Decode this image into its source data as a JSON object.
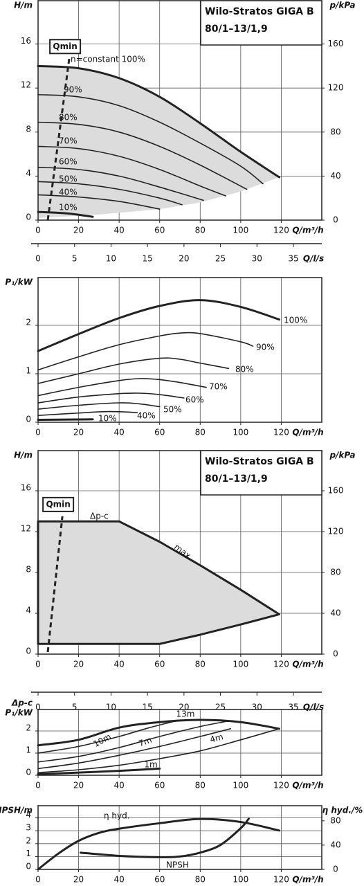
{
  "chart_data": [
    {
      "type": "line",
      "title": "Wilo-Stratos GIGA B",
      "subtitle": "80/1–13/1,9",
      "ylabel": "H/m",
      "y2label": "p/kPa",
      "xlabel": "Q/m³/h",
      "xlim": [
        0,
        140
      ],
      "xticks": [
        0,
        20,
        40,
        60,
        80,
        100,
        120
      ],
      "ylim": [
        0,
        20
      ],
      "yticks": [
        0,
        4,
        8,
        12,
        16
      ],
      "y2lim": [
        0,
        200
      ],
      "y2ticks": [
        0,
        40,
        80,
        120,
        160
      ],
      "x2label": "Q/l/s",
      "x2lim": [
        0,
        38.89
      ],
      "x2ticks": [
        0,
        5,
        10,
        15,
        20,
        25,
        30,
        35
      ],
      "grid": true,
      "area": {
        "color": "#dcdcdc",
        "outline": false,
        "x": [
          0,
          20,
          40,
          60,
          80,
          100,
          119,
          100,
          80,
          60,
          30,
          0
        ],
        "values": [
          14,
          13.8,
          12.9,
          11.2,
          8.8,
          6.2,
          3.9,
          2.6,
          1.6,
          1.0,
          0.5,
          0.2
        ]
      },
      "series": [
        {
          "name": "n=constant 100%",
          "color": "#222222",
          "thick": true,
          "x": [
            0,
            20,
            40,
            60,
            80,
            100,
            119
          ],
          "values": [
            14,
            13.8,
            12.9,
            11.2,
            8.8,
            6.2,
            3.9
          ]
        },
        {
          "name": "90%",
          "color": "#222222",
          "x": [
            0,
            20,
            40,
            60,
            80,
            100,
            111
          ],
          "values": [
            11.4,
            11.2,
            10.4,
            8.9,
            7.0,
            4.9,
            3.3
          ]
        },
        {
          "name": "80%",
          "color": "#222222",
          "x": [
            0,
            20,
            40,
            60,
            80,
            103
          ],
          "values": [
            8.9,
            8.7,
            8.0,
            6.7,
            5.0,
            2.8
          ]
        },
        {
          "name": "70%",
          "color": "#222222",
          "x": [
            0,
            20,
            40,
            60,
            80,
            92.6
          ],
          "values": [
            6.7,
            6.5,
            5.8,
            4.6,
            3.1,
            2.2
          ]
        },
        {
          "name": "60%",
          "color": "#222222",
          "x": [
            0,
            20,
            40,
            60,
            81.6
          ],
          "values": [
            4.8,
            4.6,
            4.0,
            3.0,
            1.8
          ]
        },
        {
          "name": "50%",
          "color": "#222222",
          "x": [
            0,
            20,
            40,
            60,
            71
          ],
          "values": [
            3.5,
            3.3,
            2.8,
            2.0,
            1.4
          ]
        },
        {
          "name": "40%",
          "color": "#222222",
          "x": [
            0,
            20,
            40,
            60
          ],
          "values": [
            2.3,
            2.1,
            1.7,
            1.0
          ]
        },
        {
          "name": "10%",
          "color": "#222222",
          "thick": true,
          "x": [
            0,
            15,
            27
          ],
          "values": [
            0.75,
            0.6,
            0.3
          ]
        },
        {
          "name": "Qmin",
          "color": "#222222",
          "dashed": true,
          "x": [
            4.8,
            15.4
          ],
          "values": [
            0,
            14.7
          ]
        }
      ]
    },
    {
      "type": "line",
      "ylabel": "P₁/kW",
      "xlabel": "Q/m³/h",
      "xlim": [
        0,
        140
      ],
      "xticks": [
        0,
        20,
        40,
        60,
        80,
        100,
        120
      ],
      "ylim": [
        0,
        3
      ],
      "yticks": [
        0,
        1,
        2
      ],
      "grid": true,
      "series": [
        {
          "name": "100%",
          "color": "#222222",
          "thick": true,
          "x": [
            0,
            20,
            40,
            60,
            80,
            100,
            119
          ],
          "values": [
            1.47,
            1.82,
            2.15,
            2.4,
            2.52,
            2.38,
            2.12
          ]
        },
        {
          "name": "90%",
          "color": "#222222",
          "x": [
            0,
            20,
            40,
            60,
            70,
            80,
            100,
            106
          ],
          "values": [
            1.08,
            1.35,
            1.6,
            1.78,
            1.84,
            1.83,
            1.66,
            1.57
          ]
        },
        {
          "name": "80%",
          "color": "#222222",
          "x": [
            0,
            20,
            40,
            60,
            70,
            80,
            94
          ],
          "values": [
            0.8,
            1.0,
            1.2,
            1.32,
            1.3,
            1.22,
            1.11
          ]
        },
        {
          "name": "70%",
          "color": "#222222",
          "x": [
            0,
            20,
            40,
            50,
            60,
            70,
            83
          ],
          "values": [
            0.55,
            0.72,
            0.86,
            0.9,
            0.88,
            0.82,
            0.72
          ]
        },
        {
          "name": "60%",
          "color": "#222222",
          "x": [
            0,
            20,
            40,
            50,
            60,
            72
          ],
          "values": [
            0.4,
            0.52,
            0.59,
            0.6,
            0.57,
            0.5
          ]
        },
        {
          "name": "50%",
          "color": "#222222",
          "x": [
            0,
            20,
            40,
            50,
            60
          ],
          "values": [
            0.27,
            0.35,
            0.4,
            0.38,
            0.32
          ]
        },
        {
          "name": "40%",
          "color": "#222222",
          "x": [
            0,
            20,
            35,
            49
          ],
          "values": [
            0.14,
            0.19,
            0.22,
            0.2
          ]
        },
        {
          "name": "10%",
          "color": "#222222",
          "thick": true,
          "x": [
            0,
            27
          ],
          "values": [
            0.05,
            0.06
          ]
        }
      ]
    },
    {
      "type": "line",
      "title": "Wilo-Stratos GIGA B",
      "subtitle": "80/1–13/1,9",
      "ylabel": "H/m",
      "y2label": "p/kPa",
      "xlabel": "Q/m³/h",
      "xlim": [
        0,
        140
      ],
      "xticks": [
        0,
        20,
        40,
        60,
        80,
        100,
        120
      ],
      "ylim": [
        0,
        20
      ],
      "yticks": [
        0,
        4,
        8,
        12,
        16
      ],
      "y2lim": [
        0,
        200
      ],
      "y2ticks": [
        0,
        40,
        80,
        120,
        160
      ],
      "x2label": "Q/l/s",
      "x2lim": [
        0,
        38.89
      ],
      "x2ticks": [
        0,
        5,
        10,
        15,
        20,
        25,
        30,
        35
      ],
      "grid": true,
      "area": {
        "color": "#dcdcdc",
        "outline": true,
        "x": [
          0,
          40,
          60,
          80,
          100,
          119,
          100,
          80,
          60,
          0
        ],
        "values": [
          13,
          13,
          11,
          8.7,
          6.3,
          3.9,
          2.9,
          1.9,
          1.0,
          1.0
        ]
      },
      "annotations": [
        "Δp-c",
        "max."
      ],
      "series": [
        {
          "name": "Qmin",
          "color": "#222222",
          "dashed": true,
          "x": [
            4.8,
            12
          ],
          "values": [
            0.2,
            13.5
          ]
        }
      ]
    },
    {
      "type": "line",
      "mode_label": "Δp-c",
      "ylabel": "P₁/kW",
      "xlabel": "Q/m³/h",
      "xlim": [
        0,
        140
      ],
      "xticks": [
        0,
        20,
        40,
        60,
        80,
        100,
        120
      ],
      "ylim": [
        0,
        3
      ],
      "yticks": [
        0,
        1,
        2
      ],
      "grid": true,
      "series": [
        {
          "color": "#222222",
          "thick": true,
          "x": [
            0,
            20,
            40,
            60,
            80,
            100,
            119
          ],
          "values": [
            1.35,
            1.6,
            2.15,
            2.4,
            2.5,
            2.4,
            2.1
          ]
        },
        {
          "name": "13m",
          "color": "#222222",
          "x": [
            0,
            20,
            40,
            55,
            68
          ],
          "values": [
            1.0,
            1.3,
            1.75,
            2.15,
            2.45
          ]
        },
        {
          "name": "10m",
          "color": "#222222",
          "x": [
            0,
            20,
            40,
            60,
            80,
            94
          ],
          "values": [
            0.6,
            0.85,
            1.25,
            1.75,
            2.2,
            2.45
          ]
        },
        {
          "name": "7m",
          "color": "#222222",
          "x": [
            0,
            20,
            40,
            60,
            80,
            95
          ],
          "values": [
            0.3,
            0.55,
            0.9,
            1.3,
            1.75,
            2.1
          ]
        },
        {
          "name": "4m",
          "color": "#222222",
          "x": [
            0,
            20,
            40,
            60,
            80,
            100,
            119
          ],
          "values": [
            0.12,
            0.25,
            0.45,
            0.75,
            1.1,
            1.6,
            2.1
          ]
        },
        {
          "name": "1m",
          "color": "#222222",
          "thick": true,
          "x": [
            0,
            20,
            40,
            60
          ],
          "values": [
            0.05,
            0.12,
            0.2,
            0.3
          ]
        }
      ]
    },
    {
      "type": "line",
      "ylabel": "NPSH/m",
      "y2label": "η hyd./%",
      "xlabel": "Q/m³/h",
      "xlim": [
        0,
        140
      ],
      "xticks": [
        0,
        20,
        40,
        60,
        80,
        100,
        120
      ],
      "ylim": [
        0,
        5
      ],
      "yticks": [
        0,
        1,
        2,
        3,
        4
      ],
      "y2lim": [
        0,
        106
      ],
      "y2ticks": [
        0,
        40,
        80
      ],
      "grid": true,
      "series": [
        {
          "name": "η hyd.",
          "color": "#222222",
          "thick": true,
          "axis": "y2",
          "x": [
            0,
            10,
            20,
            30,
            40,
            60,
            80,
            100,
            119
          ],
          "values": [
            0,
            26,
            47,
            60,
            67,
            76,
            83,
            78,
            64
          ]
        },
        {
          "name": "NPSH",
          "color": "#222222",
          "thick": true,
          "x": [
            21,
            40,
            60,
            70,
            80,
            90,
            100,
            104
          ],
          "values": [
            1.3,
            1.05,
            0.95,
            1.0,
            1.3,
            1.9,
            3.2,
            3.95
          ]
        }
      ]
    }
  ]
}
